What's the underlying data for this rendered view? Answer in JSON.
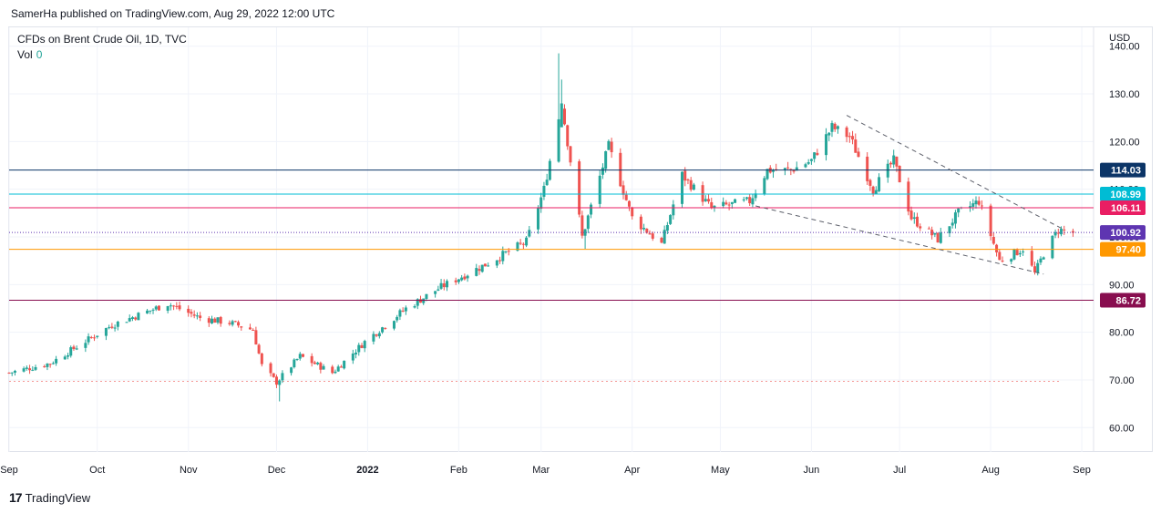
{
  "attribution": "SamerHa published on TradingView.com, Aug 29, 2022 12:00 UTC",
  "legend": {
    "symbol": "CFDs on Brent Crude Oil, 1D, TVC",
    "vol_label": "Vol",
    "vol_value": "0"
  },
  "footer": {
    "brand": "TradingView"
  },
  "colors": {
    "up": "#26a69a",
    "down": "#ef5350",
    "grid": "#f0f3fa",
    "axis_text": "#131722"
  },
  "chart_data": {
    "type": "candlestick",
    "currency": "USD",
    "ylim": [
      57,
      143
    ],
    "y_ticks": [
      "140.00",
      "130.00",
      "120.00",
      "110.00",
      "100.00",
      "90.00",
      "80.00",
      "70.00",
      "60.00"
    ],
    "y_tick_values": [
      140,
      130,
      120,
      110,
      100,
      90,
      80,
      70,
      60
    ],
    "x_start": "2021-09-01",
    "x_end": "2022-09-05",
    "x_ticks": [
      {
        "date": "2021-09-01",
        "label": "Sep"
      },
      {
        "date": "2021-10-01",
        "label": "Oct"
      },
      {
        "date": "2021-11-01",
        "label": "Nov"
      },
      {
        "date": "2021-12-01",
        "label": "Dec"
      },
      {
        "date": "2022-01-01",
        "label": "2022"
      },
      {
        "date": "2022-02-01",
        "label": "Feb"
      },
      {
        "date": "2022-03-01",
        "label": "Mar"
      },
      {
        "date": "2022-04-01",
        "label": "Apr"
      },
      {
        "date": "2022-05-01",
        "label": "May"
      },
      {
        "date": "2022-06-01",
        "label": "Jun"
      },
      {
        "date": "2022-07-01",
        "label": "Jul"
      },
      {
        "date": "2022-08-01",
        "label": "Aug"
      },
      {
        "date": "2022-09-01",
        "label": "Sep"
      }
    ],
    "anchors": [
      [
        "2021-09-01",
        71.5
      ],
      [
        "2021-09-15",
        73.5
      ],
      [
        "2021-09-28",
        78.5
      ],
      [
        "2021-10-06",
        81.5
      ],
      [
        "2021-10-25",
        86.0
      ],
      [
        "2021-11-05",
        83.0
      ],
      [
        "2021-11-15",
        82.0
      ],
      [
        "2021-11-23",
        80.5
      ],
      [
        "2021-11-26",
        73.0
      ],
      [
        "2021-12-01",
        69.5
      ],
      [
        "2021-12-09",
        75.0
      ],
      [
        "2021-12-20",
        71.5
      ],
      [
        "2021-12-31",
        78.0
      ],
      [
        "2022-01-14",
        85.0
      ],
      [
        "2022-01-26",
        89.5
      ],
      [
        "2022-02-11",
        94.5
      ],
      [
        "2022-02-24",
        99.0
      ],
      [
        "2022-03-02",
        110.0
      ],
      [
        "2022-03-08",
        128.0
      ],
      [
        "2022-03-15",
        100.0
      ],
      [
        "2022-03-24",
        119.0
      ],
      [
        "2022-04-01",
        104.0
      ],
      [
        "2022-04-11",
        98.5
      ],
      [
        "2022-04-18",
        113.0
      ],
      [
        "2022-04-28",
        106.0
      ],
      [
        "2022-05-11",
        107.5
      ],
      [
        "2022-05-17",
        114.0
      ],
      [
        "2022-05-25",
        114.0
      ],
      [
        "2022-06-01",
        116.0
      ],
      [
        "2022-06-08",
        123.0
      ],
      [
        "2022-06-14",
        121.0
      ],
      [
        "2022-06-22",
        110.0
      ],
      [
        "2022-06-29",
        116.0
      ],
      [
        "2022-07-05",
        104.0
      ],
      [
        "2022-07-14",
        99.5
      ],
      [
        "2022-07-21",
        105.0
      ],
      [
        "2022-07-28",
        107.5
      ],
      [
        "2022-08-04",
        95.0
      ],
      [
        "2022-08-12",
        97.5
      ],
      [
        "2022-08-16",
        92.3
      ],
      [
        "2022-08-19",
        96.5
      ],
      [
        "2022-08-24",
        101.5
      ],
      [
        "2022-08-29",
        100.9
      ]
    ],
    "levels": [
      {
        "value": 114.03,
        "label": "114.03",
        "color": "#0c3567",
        "style": "solid"
      },
      {
        "value": 108.99,
        "label": "108.99",
        "color": "#00bcd4",
        "style": "solid"
      },
      {
        "value": 106.11,
        "label": "106.11",
        "color": "#e91e63",
        "style": "solid"
      },
      {
        "value": 100.92,
        "label": "100.92",
        "color": "#5e35b1",
        "style": "dotted"
      },
      {
        "value": 97.4,
        "label": "97.40",
        "color": "#ff9800",
        "style": "solid"
      },
      {
        "value": 86.72,
        "label": "86.72",
        "color": "#880e4f",
        "style": "solid"
      }
    ],
    "baseline": {
      "value": 69.7,
      "color": "#ef5350"
    },
    "channel": [
      {
        "from": [
          "2022-06-13",
          125.5
        ],
        "to": [
          "2022-08-26",
          101.5
        ]
      },
      {
        "from": [
          "2022-05-13",
          106.5
        ],
        "to": [
          "2022-08-19",
          92.2
        ]
      }
    ]
  }
}
